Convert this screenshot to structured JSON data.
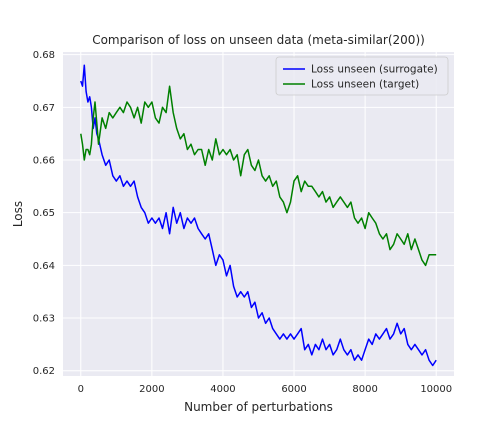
{
  "chart_data": {
    "type": "line",
    "title": "Comparison of loss on unseen data (meta-similar(200))",
    "xlabel": "Number of perturbations",
    "ylabel": "Loss",
    "xlim": [
      -500,
      10500
    ],
    "ylim": [
      0.619,
      0.6805
    ],
    "xticks": [
      0,
      2000,
      4000,
      6000,
      8000,
      10000
    ],
    "yticks": [
      0.62,
      0.63,
      0.64,
      0.65,
      0.66,
      0.67,
      0.68
    ],
    "ytick_labels": [
      "0.62",
      "0.63",
      "0.64",
      "0.65",
      "0.66",
      "0.67",
      "0.68"
    ],
    "grid": true,
    "legend_position": "upper-right",
    "series": [
      {
        "name": "Loss unseen (surrogate)",
        "color": "#0000ff",
        "x": [
          0,
          50,
          100,
          150,
          200,
          250,
          300,
          350,
          400,
          450,
          500,
          600,
          700,
          800,
          900,
          1000,
          1100,
          1200,
          1300,
          1400,
          1500,
          1600,
          1700,
          1800,
          1900,
          2000,
          2100,
          2200,
          2300,
          2400,
          2500,
          2600,
          2700,
          2800,
          2900,
          3000,
          3100,
          3200,
          3300,
          3400,
          3500,
          3600,
          3700,
          3800,
          3900,
          4000,
          4100,
          4200,
          4300,
          4400,
          4500,
          4600,
          4700,
          4800,
          4900,
          5000,
          5100,
          5200,
          5300,
          5400,
          5500,
          5600,
          5700,
          5800,
          5900,
          6000,
          6100,
          6200,
          6300,
          6400,
          6500,
          6600,
          6700,
          6800,
          6900,
          7000,
          7100,
          7200,
          7300,
          7400,
          7500,
          7600,
          7700,
          7800,
          7900,
          8000,
          8100,
          8200,
          8300,
          8400,
          8500,
          8600,
          8700,
          8800,
          8900,
          9000,
          9100,
          9200,
          9300,
          9400,
          9500,
          9600,
          9700,
          9800,
          9900,
          10000
        ],
        "y": [
          0.675,
          0.674,
          0.678,
          0.673,
          0.671,
          0.672,
          0.67,
          0.666,
          0.668,
          0.665,
          0.664,
          0.661,
          0.659,
          0.66,
          0.657,
          0.656,
          0.657,
          0.655,
          0.656,
          0.655,
          0.656,
          0.653,
          0.651,
          0.65,
          0.648,
          0.649,
          0.648,
          0.649,
          0.647,
          0.65,
          0.646,
          0.651,
          0.648,
          0.65,
          0.647,
          0.649,
          0.648,
          0.649,
          0.647,
          0.646,
          0.645,
          0.646,
          0.643,
          0.64,
          0.642,
          0.641,
          0.638,
          0.64,
          0.636,
          0.634,
          0.635,
          0.634,
          0.635,
          0.632,
          0.633,
          0.63,
          0.631,
          0.629,
          0.63,
          0.628,
          0.627,
          0.626,
          0.627,
          0.626,
          0.627,
          0.626,
          0.627,
          0.628,
          0.624,
          0.625,
          0.623,
          0.625,
          0.624,
          0.626,
          0.624,
          0.625,
          0.623,
          0.624,
          0.626,
          0.624,
          0.623,
          0.624,
          0.622,
          0.623,
          0.622,
          0.624,
          0.626,
          0.625,
          0.627,
          0.626,
          0.627,
          0.628,
          0.626,
          0.627,
          0.629,
          0.627,
          0.628,
          0.625,
          0.624,
          0.625,
          0.624,
          0.623,
          0.624,
          0.622,
          0.621,
          0.622
        ]
      },
      {
        "name": "Loss unseen (target)",
        "color": "#008000",
        "x": [
          0,
          50,
          100,
          150,
          200,
          250,
          300,
          350,
          400,
          450,
          500,
          600,
          700,
          800,
          900,
          1000,
          1100,
          1200,
          1300,
          1400,
          1500,
          1600,
          1700,
          1800,
          1900,
          2000,
          2100,
          2200,
          2300,
          2400,
          2500,
          2600,
          2700,
          2800,
          2900,
          3000,
          3100,
          3200,
          3300,
          3400,
          3500,
          3600,
          3700,
          3800,
          3900,
          4000,
          4100,
          4200,
          4300,
          4400,
          4500,
          4600,
          4700,
          4800,
          4900,
          5000,
          5100,
          5200,
          5300,
          5400,
          5500,
          5600,
          5700,
          5800,
          5900,
          6000,
          6100,
          6200,
          6300,
          6400,
          6500,
          6600,
          6700,
          6800,
          6900,
          7000,
          7100,
          7200,
          7300,
          7400,
          7500,
          7600,
          7700,
          7800,
          7900,
          8000,
          8100,
          8200,
          8300,
          8400,
          8500,
          8600,
          8700,
          8800,
          8900,
          9000,
          9100,
          9200,
          9300,
          9400,
          9500,
          9600,
          9700,
          9800,
          9900,
          10000
        ],
        "y": [
          0.665,
          0.663,
          0.66,
          0.662,
          0.662,
          0.661,
          0.663,
          0.668,
          0.671,
          0.667,
          0.663,
          0.668,
          0.666,
          0.669,
          0.668,
          0.669,
          0.67,
          0.669,
          0.671,
          0.67,
          0.668,
          0.67,
          0.667,
          0.671,
          0.67,
          0.671,
          0.668,
          0.667,
          0.67,
          0.669,
          0.674,
          0.669,
          0.666,
          0.664,
          0.665,
          0.662,
          0.663,
          0.661,
          0.662,
          0.662,
          0.659,
          0.662,
          0.66,
          0.664,
          0.661,
          0.662,
          0.661,
          0.662,
          0.66,
          0.661,
          0.657,
          0.661,
          0.662,
          0.659,
          0.658,
          0.66,
          0.657,
          0.656,
          0.657,
          0.655,
          0.656,
          0.653,
          0.652,
          0.65,
          0.652,
          0.656,
          0.657,
          0.654,
          0.656,
          0.655,
          0.655,
          0.654,
          0.653,
          0.654,
          0.652,
          0.653,
          0.651,
          0.652,
          0.653,
          0.652,
          0.651,
          0.652,
          0.649,
          0.648,
          0.649,
          0.647,
          0.65,
          0.649,
          0.648,
          0.646,
          0.645,
          0.646,
          0.643,
          0.644,
          0.646,
          0.645,
          0.644,
          0.646,
          0.643,
          0.645,
          0.643,
          0.641,
          0.64,
          0.642,
          0.642,
          0.642
        ]
      }
    ]
  }
}
